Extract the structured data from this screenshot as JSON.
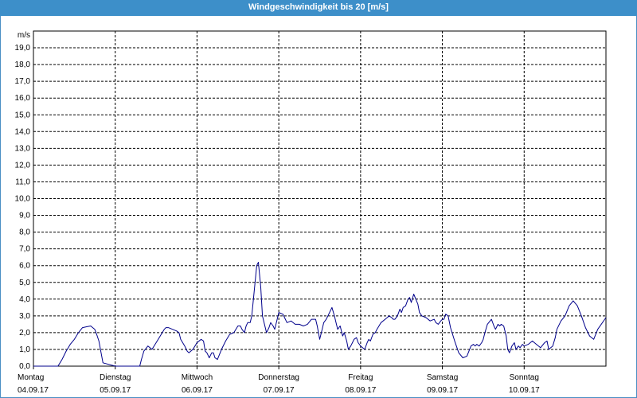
{
  "title": "Windgeschwindigkeit bis 20 [m/s]",
  "chart_data": {
    "type": "line",
    "title": "Windgeschwindigkeit bis 20 [m/s]",
    "ylabel": "m/s",
    "ylim": [
      0,
      20
    ],
    "yticks": [
      "0,0",
      "1,0",
      "2,0",
      "3,0",
      "4,0",
      "5,0",
      "6,0",
      "7,0",
      "8,0",
      "9,0",
      "10,0",
      "11,0",
      "12,0",
      "13,0",
      "14,0",
      "15,0",
      "16,0",
      "17,0",
      "18,0",
      "19,0"
    ],
    "grid": true,
    "xlim": [
      0,
      7
    ],
    "days": [
      {
        "name": "Montag",
        "date": "04.09.17"
      },
      {
        "name": "Dienstag",
        "date": "05.09.17"
      },
      {
        "name": "Mittwoch",
        "date": "06.09.17"
      },
      {
        "name": "Donnerstag",
        "date": "07.09.17"
      },
      {
        "name": "Freitag",
        "date": "08.09.17"
      },
      {
        "name": "Samstag",
        "date": "09.09.17"
      },
      {
        "name": "Sonntag",
        "date": "10.09.17"
      }
    ],
    "series": [
      {
        "color": "#00008b",
        "x": [
          0.0,
          0.3,
          0.35,
          0.4,
          0.45,
          0.5,
          0.55,
          0.6,
          0.65,
          0.7,
          0.75,
          0.78,
          0.8,
          0.85,
          1.0,
          1.1,
          1.3,
          1.32,
          1.35,
          1.4,
          1.45,
          1.5,
          1.55,
          1.6,
          1.62,
          1.65,
          1.7,
          1.75,
          1.78,
          1.8,
          1.85,
          1.88,
          1.9,
          1.95,
          2.0,
          2.05,
          2.08,
          2.1,
          2.12,
          2.15,
          2.18,
          2.2,
          2.22,
          2.25,
          2.3,
          2.35,
          2.4,
          2.45,
          2.5,
          2.53,
          2.55,
          2.58,
          2.6,
          2.62,
          2.65,
          2.67,
          2.7,
          2.73,
          2.75,
          2.78,
          2.8,
          2.85,
          2.88,
          2.9,
          2.93,
          2.95,
          2.98,
          3.0,
          3.05,
          3.08,
          3.1,
          3.15,
          3.2,
          3.25,
          3.3,
          3.35,
          3.4,
          3.45,
          3.47,
          3.5,
          3.53,
          3.55,
          3.58,
          3.6,
          3.65,
          3.68,
          3.7,
          3.72,
          3.75,
          3.78,
          3.8,
          3.83,
          3.85,
          3.88,
          3.9,
          3.92,
          3.95,
          3.97,
          4.0,
          4.05,
          4.08,
          4.1,
          4.12,
          4.15,
          4.18,
          4.2,
          4.25,
          4.3,
          4.35,
          4.38,
          4.4,
          4.42,
          4.45,
          4.48,
          4.5,
          4.52,
          4.55,
          4.58,
          4.6,
          4.62,
          4.65,
          4.7,
          4.72,
          4.75,
          4.8,
          4.85,
          4.9,
          4.92,
          4.95,
          4.98,
          5.0,
          5.02,
          5.04,
          5.07,
          5.1,
          5.15,
          5.2,
          5.25,
          5.3,
          5.35,
          5.38,
          5.4,
          5.42,
          5.45,
          5.48,
          5.5,
          5.52,
          5.55,
          5.6,
          5.63,
          5.65,
          5.68,
          5.7,
          5.72,
          5.75,
          5.78,
          5.8,
          5.82,
          5.85,
          5.88,
          5.9,
          5.93,
          5.95,
          5.98,
          6.0,
          6.05,
          6.1,
          6.15,
          6.2,
          6.25,
          6.28,
          6.3,
          6.35,
          6.38,
          6.4,
          6.45,
          6.5,
          6.55,
          6.6,
          6.65,
          6.7,
          6.75,
          6.8,
          6.85,
          6.9,
          7.0
        ],
        "y": [
          0,
          0,
          0.4,
          0.9,
          1.3,
          1.6,
          2.0,
          2.3,
          2.35,
          2.4,
          2.2,
          1.8,
          1.5,
          0.2,
          0,
          0,
          0,
          0.4,
          0.9,
          1.2,
          1.0,
          1.4,
          1.8,
          2.2,
          2.3,
          2.3,
          2.2,
          2.1,
          2.0,
          1.6,
          1.2,
          0.9,
          0.8,
          1.0,
          1.4,
          1.6,
          1.5,
          0.9,
          0.8,
          0.5,
          0.8,
          0.8,
          0.5,
          0.4,
          1.0,
          1.5,
          1.9,
          2.0,
          2.4,
          2.4,
          2.2,
          2.0,
          2.4,
          2.6,
          2.6,
          3.0,
          4.5,
          6.0,
          6.2,
          4.7,
          3.0,
          2.0,
          2.3,
          2.6,
          2.4,
          2.2,
          2.8,
          3.2,
          3.1,
          2.8,
          2.6,
          2.7,
          2.5,
          2.5,
          2.4,
          2.5,
          2.8,
          2.8,
          2.4,
          1.6,
          2.2,
          2.6,
          2.8,
          3.0,
          3.5,
          3.0,
          2.6,
          2.2,
          2.4,
          1.8,
          2.0,
          1.5,
          1.0,
          1.2,
          1.4,
          1.6,
          1.7,
          1.4,
          1.2,
          1.0,
          1.4,
          1.6,
          1.5,
          1.9,
          2.0,
          2.2,
          2.6,
          2.8,
          3.0,
          2.9,
          2.8,
          2.8,
          3.0,
          3.4,
          3.2,
          3.5,
          3.6,
          4.0,
          4.1,
          3.8,
          4.3,
          3.7,
          3.2,
          3.0,
          2.9,
          2.7,
          2.8,
          2.6,
          2.5,
          2.7,
          2.8,
          2.8,
          3.1,
          3.0,
          2.3,
          1.5,
          0.8,
          0.5,
          0.6,
          1.2,
          1.3,
          1.2,
          1.3,
          1.2,
          1.4,
          1.6,
          2.0,
          2.5,
          2.8,
          2.4,
          2.2,
          2.5,
          2.4,
          2.5,
          2.4,
          1.8,
          1.0,
          0.8,
          1.2,
          1.4,
          1.0,
          1.2,
          1.1,
          1.3,
          1.2,
          1.3,
          1.5,
          1.3,
          1.1,
          1.4,
          1.5,
          1.0,
          1.2,
          1.7,
          2.2,
          2.7,
          3.0,
          3.6,
          3.9,
          3.6,
          3.0,
          2.3,
          1.8,
          1.6,
          2.2,
          2.9
        ]
      }
    ]
  }
}
